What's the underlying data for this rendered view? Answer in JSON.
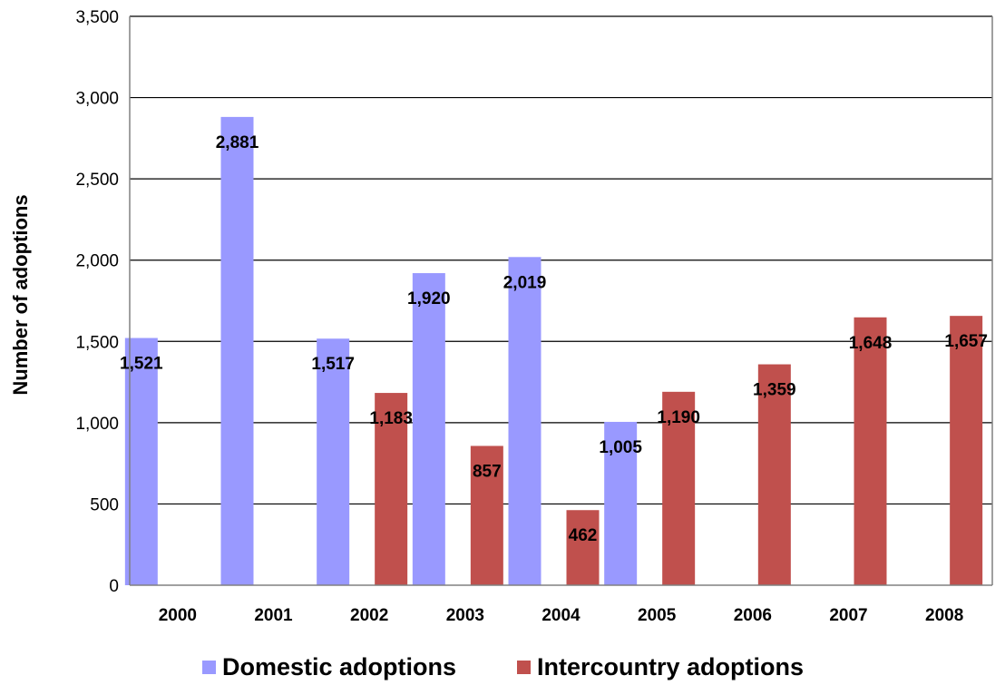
{
  "chart_data": {
    "type": "bar",
    "title": "",
    "xlabel": "",
    "ylabel": "Number of adoptions",
    "categories": [
      "2000",
      "2001",
      "2002",
      "2003",
      "2004",
      "2005",
      "2006",
      "2007",
      "2008"
    ],
    "series": [
      {
        "name": "Domestic adoptions",
        "color": "#9999FF",
        "values": [
          1521,
          2881,
          1517,
          1920,
          2019,
          1005,
          null,
          null,
          null
        ],
        "labels": [
          "1,521",
          "2,881",
          "1,517",
          "1,920",
          "2,019",
          "1,005",
          "",
          "",
          ""
        ]
      },
      {
        "name": "Intercountry adoptions",
        "color": "#C0504D",
        "values": [
          null,
          null,
          1183,
          857,
          462,
          1190,
          1359,
          1648,
          1657
        ],
        "labels": [
          "",
          "",
          "1,183",
          "857",
          "462",
          "1,190",
          "1,359",
          "1,648",
          "1,657"
        ]
      }
    ],
    "ylim": [
      0,
      3500
    ],
    "yticks": [
      0,
      500,
      1000,
      1500,
      2000,
      2500,
      3000,
      3500
    ],
    "ytick_labels": [
      "0",
      "500",
      "1,000",
      "1,500",
      "2,000",
      "2,500",
      "3,000",
      "3,500"
    ],
    "grid": true,
    "legend_position": "bottom"
  }
}
